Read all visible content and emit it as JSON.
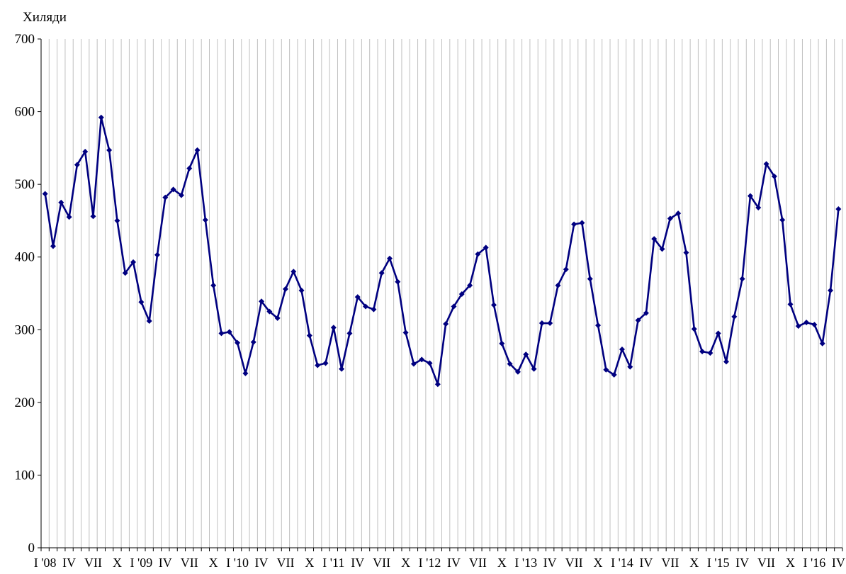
{
  "chart_data": {
    "type": "line",
    "title": "",
    "ylabel": "Хиляди",
    "xlabel": "",
    "ylim": [
      0,
      700
    ],
    "yticks": [
      0,
      100,
      200,
      300,
      400,
      500,
      600,
      700
    ],
    "grid": "vertical",
    "legend": "none",
    "colors": {
      "line": "#000080",
      "grid": "#c0c0c0",
      "axis": "#000000"
    },
    "x_tick_labels": [
      "I '08",
      "IV",
      "VII",
      "X",
      "I '09",
      "IV",
      "VII",
      "X",
      "I '10",
      "IV",
      "VII",
      "X",
      "I '11",
      "IV",
      "VII",
      "X",
      "I '12",
      "IV",
      "VII",
      "X",
      "I '13",
      "IV",
      "VII",
      "X",
      "I '14",
      "IV",
      "VII",
      "X",
      "I '15",
      "IV",
      "VII",
      "X",
      "I '16",
      "IV"
    ],
    "x": [
      "I '08",
      "II",
      "III",
      "IV",
      "V",
      "VI",
      "VII",
      "VIII",
      "IX",
      "X",
      "XI",
      "XII",
      "I '09",
      "II",
      "III",
      "IV",
      "V",
      "VI",
      "VII",
      "VIII",
      "IX",
      "X",
      "XI",
      "XII",
      "I '10",
      "II",
      "III",
      "IV",
      "V",
      "VI",
      "VII",
      "VIII",
      "IX",
      "X",
      "XI",
      "XII",
      "I '11",
      "II",
      "III",
      "IV",
      "V",
      "VI",
      "VII",
      "VIII",
      "IX",
      "X",
      "XI",
      "XII",
      "I '12",
      "II",
      "III",
      "IV",
      "V",
      "VI",
      "VII",
      "VIII",
      "IX",
      "X",
      "XI",
      "XII",
      "I '13",
      "II",
      "III",
      "IV",
      "V",
      "VI",
      "VII",
      "VIII",
      "IX",
      "X",
      "XI",
      "XII",
      "I '14",
      "II",
      "III",
      "IV",
      "V",
      "VI",
      "VII",
      "VIII",
      "IX",
      "X",
      "XI",
      "XII",
      "I '15",
      "II",
      "III",
      "IV",
      "V",
      "VI",
      "VII",
      "VIII",
      "IX",
      "X",
      "XI",
      "XII",
      "I '16",
      "II",
      "III",
      "IV"
    ],
    "series": [
      {
        "values": [
          487,
          415,
          475,
          455,
          527,
          545,
          456,
          592,
          547,
          450,
          378,
          393,
          338,
          312,
          403,
          482,
          493,
          485,
          522,
          547,
          451,
          361,
          295,
          297,
          282,
          240,
          283,
          339,
          325,
          316,
          356,
          380,
          354,
          292,
          251,
          254,
          303,
          246,
          295,
          345,
          332,
          328,
          378,
          398,
          366,
          296,
          253,
          259,
          254,
          225,
          308,
          332,
          349,
          361,
          404,
          413,
          334,
          281,
          253,
          242,
          266,
          246,
          309,
          309,
          361,
          383,
          445,
          447,
          370,
          306,
          245,
          238,
          273,
          249,
          313,
          323,
          425,
          411,
          453,
          460,
          406,
          301,
          270,
          268,
          295,
          256,
          318,
          370,
          484,
          468,
          528,
          511,
          451,
          335,
          305,
          310,
          307,
          281,
          354,
          466
        ]
      }
    ]
  }
}
